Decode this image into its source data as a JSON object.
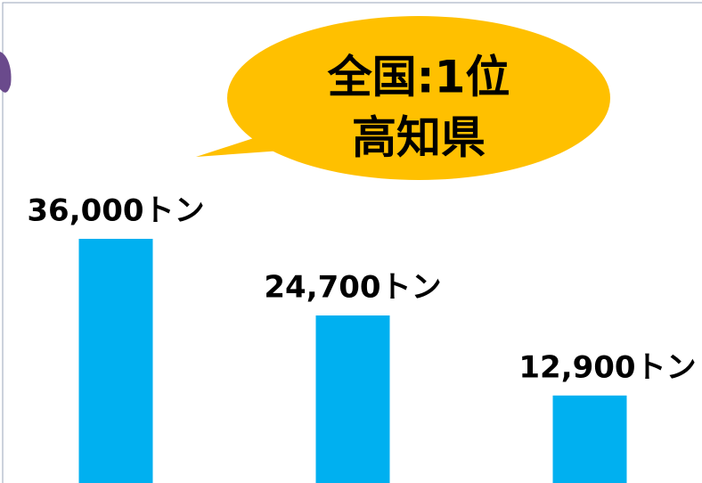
{
  "chart_data": {
    "type": "bar",
    "annotation": {
      "line1": "全国:1位",
      "line2": "高知県"
    },
    "categories": [
      null,
      null,
      null
    ],
    "values": [
      36000,
      24700,
      12900
    ],
    "value_labels": [
      "36,000トン",
      "24,700トン",
      "12,900トン"
    ],
    "color": "#00b0f0"
  }
}
